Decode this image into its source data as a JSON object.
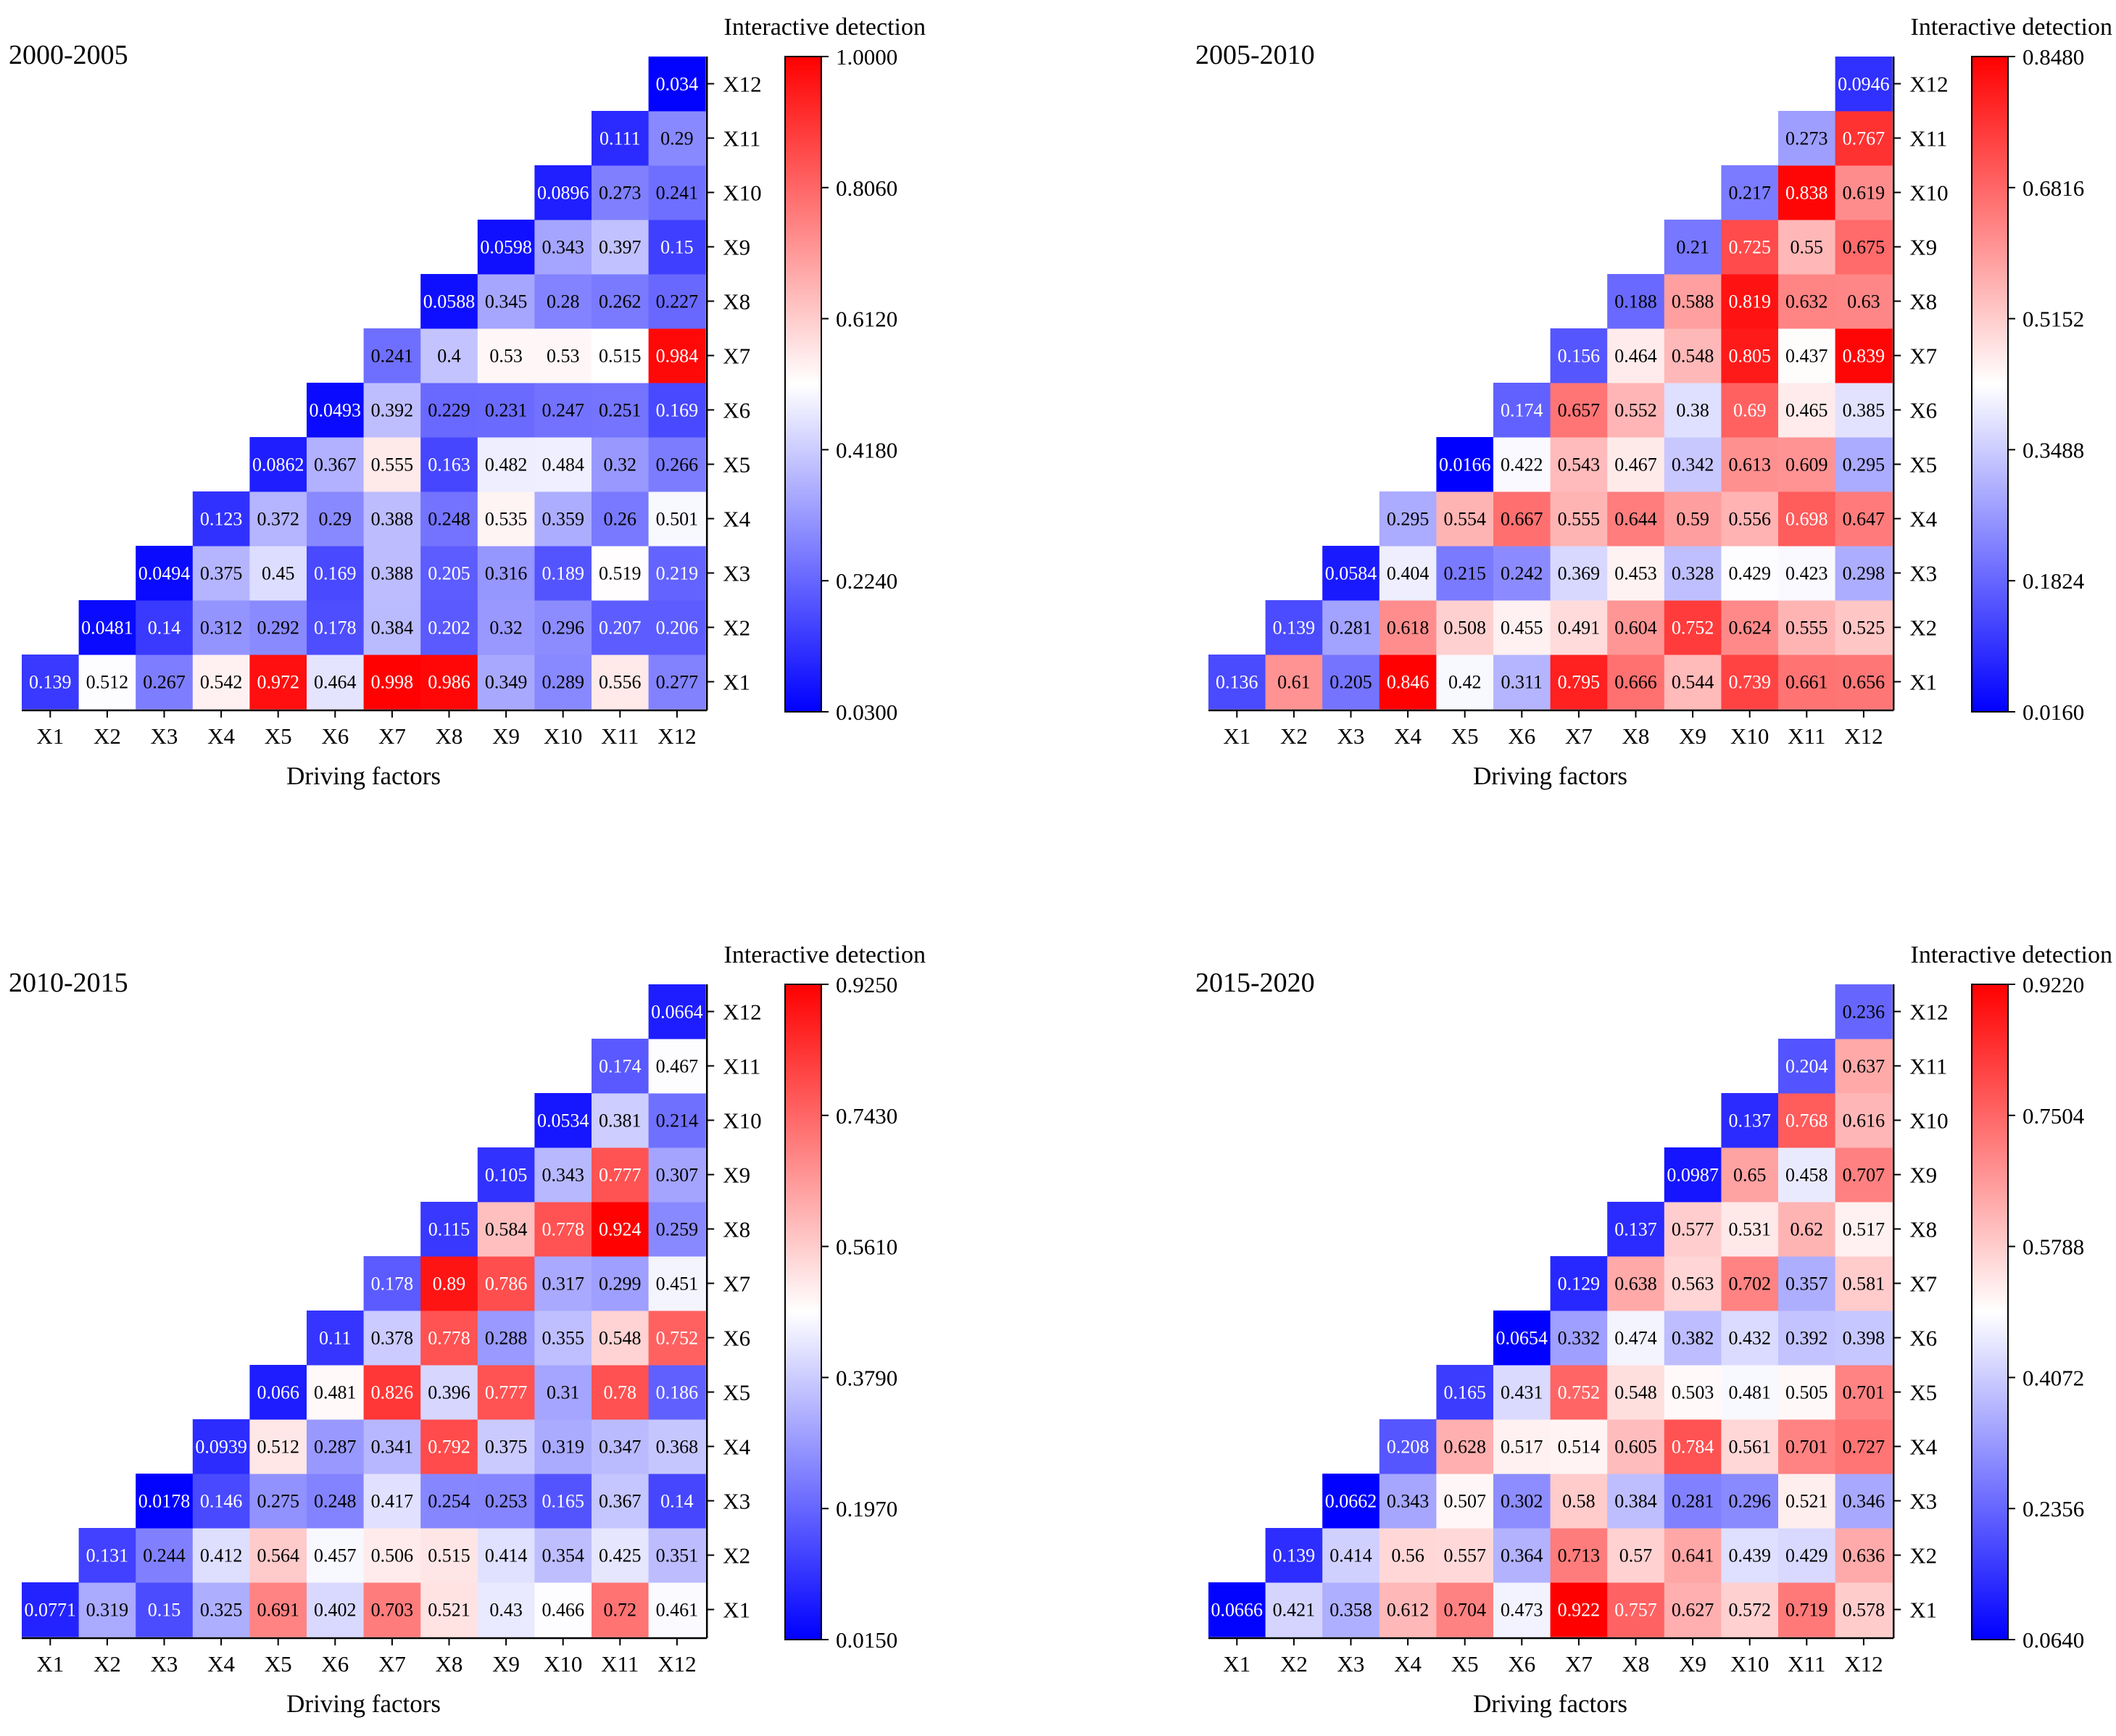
{
  "chart_data": [
    {
      "type": "heatmap",
      "title": "2000-2005",
      "xlabel": "Driving factors",
      "ylabel": "",
      "colorbar_label": "Interactive detection",
      "colorbar_ticks": [
        "1.0000",
        "0.8060",
        "0.6120",
        "0.4180",
        "0.2240",
        "0.0300"
      ],
      "vmin": 0.03,
      "vmax": 1.0,
      "x_categories": [
        "X1",
        "X2",
        "X3",
        "X4",
        "X5",
        "X6",
        "X7",
        "X8",
        "X9",
        "X10",
        "X11",
        "X12"
      ],
      "y_categories": [
        "X1",
        "X2",
        "X3",
        "X4",
        "X5",
        "X6",
        "X7",
        "X8",
        "X9",
        "X10",
        "X11",
        "X12"
      ],
      "rows": [
        [
          "0.139",
          "0.512",
          "0.267",
          "0.542",
          "0.972",
          "0.464",
          "0.998",
          "0.986",
          "0.349",
          "0.289",
          "0.556",
          "0.277"
        ],
        [
          "0.0481",
          "0.14",
          "0.312",
          "0.292",
          "0.178",
          "0.384",
          "0.202",
          "0.32",
          "0.296",
          "0.207",
          "0.206"
        ],
        [
          "0.0494",
          "0.375",
          "0.45",
          "0.169",
          "0.388",
          "0.205",
          "0.316",
          "0.189",
          "0.519",
          "0.219"
        ],
        [
          "0.123",
          "0.372",
          "0.29",
          "0.388",
          "0.248",
          "0.535",
          "0.359",
          "0.26",
          "0.501"
        ],
        [
          "0.0862",
          "0.367",
          "0.555",
          "0.163",
          "0.482",
          "0.484",
          "0.32",
          "0.266"
        ],
        [
          "0.0493",
          "0.392",
          "0.229",
          "0.231",
          "0.247",
          "0.251",
          "0.169"
        ],
        [
          "0.241",
          "0.4",
          "0.53",
          "0.53",
          "0.515",
          "0.984"
        ],
        [
          "0.0588",
          "0.345",
          "0.28",
          "0.262",
          "0.227"
        ],
        [
          "0.0598",
          "0.343",
          "0.397",
          "0.15"
        ],
        [
          "0.0896",
          "0.273",
          "0.241"
        ],
        [
          "0.111",
          "0.29"
        ],
        [
          "0.034"
        ]
      ]
    },
    {
      "type": "heatmap",
      "title": "2005-2010",
      "xlabel": "Driving factors",
      "ylabel": "",
      "colorbar_label": "Interactive detection",
      "colorbar_ticks": [
        "0.8480",
        "0.6816",
        "0.5152",
        "0.3488",
        "0.1824",
        "0.0160"
      ],
      "vmin": 0.016,
      "vmax": 0.848,
      "x_categories": [
        "X1",
        "X2",
        "X3",
        "X4",
        "X5",
        "X6",
        "X7",
        "X8",
        "X9",
        "X10",
        "X11",
        "X12"
      ],
      "y_categories": [
        "X1",
        "X2",
        "X3",
        "X4",
        "X5",
        "X6",
        "X7",
        "X8",
        "X9",
        "X10",
        "X11",
        "X12"
      ],
      "rows": [
        [
          "0.136",
          "0.61",
          "0.205",
          "0.846",
          "0.42",
          "0.311",
          "0.795",
          "0.666",
          "0.544",
          "0.739",
          "0.661",
          "0.656"
        ],
        [
          "0.139",
          "0.281",
          "0.618",
          "0.508",
          "0.455",
          "0.491",
          "0.604",
          "0.752",
          "0.624",
          "0.555",
          "0.525"
        ],
        [
          "0.0584",
          "0.404",
          "0.215",
          "0.242",
          "0.369",
          "0.453",
          "0.328",
          "0.429",
          "0.423",
          "0.298"
        ],
        [
          "0.295",
          "0.554",
          "0.667",
          "0.555",
          "0.644",
          "0.59",
          "0.556",
          "0.698",
          "0.647"
        ],
        [
          "0.0166",
          "0.422",
          "0.543",
          "0.467",
          "0.342",
          "0.613",
          "0.609",
          "0.295"
        ],
        [
          "0.174",
          "0.657",
          "0.552",
          "0.38",
          "0.69",
          "0.465",
          "0.385"
        ],
        [
          "0.156",
          "0.464",
          "0.548",
          "0.805",
          "0.437",
          "0.839"
        ],
        [
          "0.188",
          "0.588",
          "0.819",
          "0.632",
          "0.63"
        ],
        [
          "0.21",
          "0.725",
          "0.55",
          "0.675"
        ],
        [
          "0.217",
          "0.838",
          "0.619"
        ],
        [
          "0.273",
          "0.767"
        ],
        [
          "0.0946"
        ]
      ]
    },
    {
      "type": "heatmap",
      "title": "2010-2015",
      "xlabel": "Driving factors",
      "ylabel": "",
      "colorbar_label": "Interactive detection",
      "colorbar_ticks": [
        "0.9250",
        "0.7430",
        "0.5610",
        "0.3790",
        "0.1970",
        "0.0150"
      ],
      "vmin": 0.015,
      "vmax": 0.925,
      "x_categories": [
        "X1",
        "X2",
        "X3",
        "X4",
        "X5",
        "X6",
        "X7",
        "X8",
        "X9",
        "X10",
        "X11",
        "X12"
      ],
      "y_categories": [
        "X1",
        "X2",
        "X3",
        "X4",
        "X5",
        "X6",
        "X7",
        "X8",
        "X9",
        "X10",
        "X11",
        "X12"
      ],
      "rows": [
        [
          "0.0771",
          "0.319",
          "0.15",
          "0.325",
          "0.691",
          "0.402",
          "0.703",
          "0.521",
          "0.43",
          "0.466",
          "0.72",
          "0.461"
        ],
        [
          "0.131",
          "0.244",
          "0.412",
          "0.564",
          "0.457",
          "0.506",
          "0.515",
          "0.414",
          "0.354",
          "0.425",
          "0.351"
        ],
        [
          "0.0178",
          "0.146",
          "0.275",
          "0.248",
          "0.417",
          "0.254",
          "0.253",
          "0.165",
          "0.367",
          "0.14"
        ],
        [
          "0.0939",
          "0.512",
          "0.287",
          "0.341",
          "0.792",
          "0.375",
          "0.319",
          "0.347",
          "0.368"
        ],
        [
          "0.066",
          "0.481",
          "0.826",
          "0.396",
          "0.777",
          "0.31",
          "0.78",
          "0.186"
        ],
        [
          "0.11",
          "0.378",
          "0.778",
          "0.288",
          "0.355",
          "0.548",
          "0.752"
        ],
        [
          "0.178",
          "0.89",
          "0.786",
          "0.317",
          "0.299",
          "0.451"
        ],
        [
          "0.115",
          "0.584",
          "0.778",
          "0.924",
          "0.259"
        ],
        [
          "0.105",
          "0.343",
          "0.777",
          "0.307"
        ],
        [
          "0.0534",
          "0.381",
          "0.214"
        ],
        [
          "0.174",
          "0.467"
        ],
        [
          "0.0664"
        ]
      ]
    },
    {
      "type": "heatmap",
      "title": "2015-2020",
      "xlabel": "Driving factors",
      "ylabel": "",
      "colorbar_label": "Interactive detection",
      "colorbar_ticks": [
        "0.9220",
        "0.7504",
        "0.5788",
        "0.4072",
        "0.2356",
        "0.0640"
      ],
      "vmin": 0.064,
      "vmax": 0.922,
      "x_categories": [
        "X1",
        "X2",
        "X3",
        "X4",
        "X5",
        "X6",
        "X7",
        "X8",
        "X9",
        "X10",
        "X11",
        "X12"
      ],
      "y_categories": [
        "X1",
        "X2",
        "X3",
        "X4",
        "X5",
        "X6",
        "X7",
        "X8",
        "X9",
        "X10",
        "X11",
        "X12"
      ],
      "rows": [
        [
          "0.0666",
          "0.421",
          "0.358",
          "0.612",
          "0.704",
          "0.473",
          "0.922",
          "0.757",
          "0.627",
          "0.572",
          "0.719",
          "0.578"
        ],
        [
          "0.139",
          "0.414",
          "0.56",
          "0.557",
          "0.364",
          "0.713",
          "0.57",
          "0.641",
          "0.439",
          "0.429",
          "0.636"
        ],
        [
          "0.0662",
          "0.343",
          "0.507",
          "0.302",
          "0.58",
          "0.384",
          "0.281",
          "0.296",
          "0.521",
          "0.346"
        ],
        [
          "0.208",
          "0.628",
          "0.517",
          "0.514",
          "0.605",
          "0.784",
          "0.561",
          "0.701",
          "0.727"
        ],
        [
          "0.165",
          "0.431",
          "0.752",
          "0.548",
          "0.503",
          "0.481",
          "0.505",
          "0.701"
        ],
        [
          "0.0654",
          "0.332",
          "0.474",
          "0.382",
          "0.432",
          "0.392",
          "0.398"
        ],
        [
          "0.129",
          "0.638",
          "0.563",
          "0.702",
          "0.357",
          "0.581"
        ],
        [
          "0.137",
          "0.577",
          "0.531",
          "0.62",
          "0.517"
        ],
        [
          "0.0987",
          "0.65",
          "0.458",
          "0.707"
        ],
        [
          "0.137",
          "0.768",
          "0.616"
        ],
        [
          "0.204",
          "0.637"
        ],
        [
          "0.236"
        ]
      ]
    }
  ]
}
